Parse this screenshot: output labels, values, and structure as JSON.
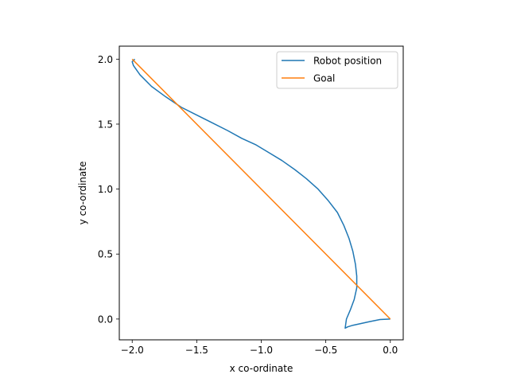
{
  "chart_data": {
    "type": "line",
    "title": "",
    "xlabel": "x co-ordinate",
    "ylabel": "y co-ordinate",
    "xlim": [
      -2.1,
      0.1
    ],
    "ylim": [
      -0.16,
      2.1
    ],
    "xticks": [
      -2.0,
      -1.5,
      -1.0,
      -0.5,
      0.0
    ],
    "xtick_labels": [
      "−2.0",
      "−1.5",
      "−1.0",
      "−0.5",
      "0.0"
    ],
    "yticks": [
      0.0,
      0.5,
      1.0,
      1.5,
      2.0
    ],
    "ytick_labels": [
      "0.0",
      "0.5",
      "1.0",
      "1.5",
      "2.0"
    ],
    "grid": false,
    "legend_position": "top-right",
    "series": [
      {
        "name": "Robot position",
        "color": "#1f77b4",
        "x": [
          0.0,
          -0.08,
          -0.16,
          -0.23,
          -0.29,
          -0.33,
          -0.35,
          -0.34,
          -0.31,
          -0.28,
          -0.26,
          -0.26,
          -0.27,
          -0.29,
          -0.32,
          -0.36,
          -0.41,
          -0.48,
          -0.56,
          -0.65,
          -0.74,
          -0.84,
          -0.94,
          -1.04,
          -1.15,
          -1.26,
          -1.38,
          -1.5,
          -1.62,
          -1.74,
          -1.85,
          -1.94,
          -1.99,
          -2.0,
          -1.98
        ],
        "y": [
          0.0,
          -0.004,
          -0.02,
          -0.035,
          -0.048,
          -0.06,
          -0.07,
          0.0,
          0.07,
          0.15,
          0.24,
          0.33,
          0.42,
          0.52,
          0.62,
          0.72,
          0.82,
          0.91,
          1.0,
          1.08,
          1.15,
          1.22,
          1.28,
          1.34,
          1.39,
          1.45,
          1.51,
          1.57,
          1.63,
          1.71,
          1.79,
          1.88,
          1.95,
          1.98,
          2.0
        ]
      },
      {
        "name": "Goal",
        "color": "#ff7f0e",
        "x": [
          -2.0,
          0.0
        ],
        "y": [
          2.0,
          0.0
        ]
      }
    ]
  }
}
